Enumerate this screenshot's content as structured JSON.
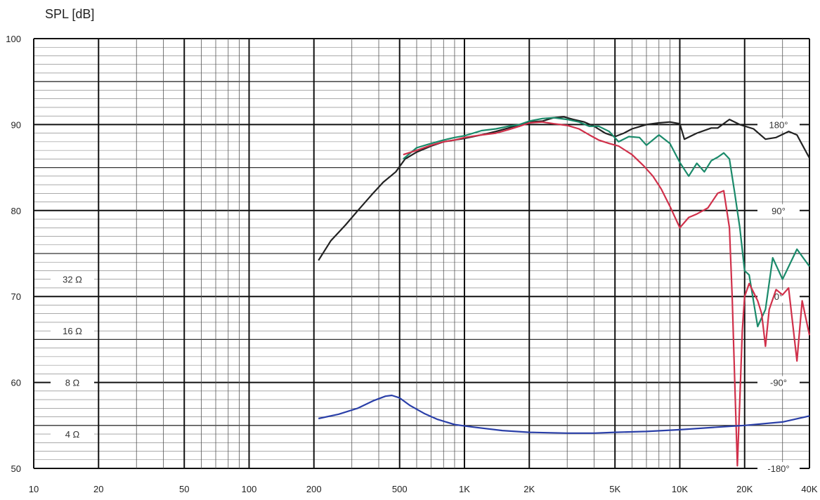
{
  "chart_data": {
    "type": "line",
    "y_unit_label": "SPL  [dB]",
    "x_scale": "log",
    "xlim": [
      10,
      40000
    ],
    "ylim": [
      50,
      100
    ],
    "grid": true,
    "x_tick_values": [
      10,
      20,
      50,
      100,
      200,
      500,
      1000,
      2000,
      5000,
      10000,
      20000,
      40000
    ],
    "x_tick_labels": [
      "10",
      "20",
      "50",
      "100",
      "200",
      "500",
      "1K",
      "2K",
      "5K",
      "10K",
      "20K",
      "40K"
    ],
    "y_tick_values": [
      50,
      60,
      70,
      80,
      90,
      100
    ],
    "y_tick_labels": [
      "50",
      "60",
      "70",
      "80",
      "90",
      "100"
    ],
    "impedance_axis": [
      {
        "label": "32  Ω",
        "y": 72
      },
      {
        "label": "16  Ω",
        "y": 66
      },
      {
        "label": "8  Ω",
        "y": 60
      },
      {
        "label": "4  Ω",
        "y": 54
      }
    ],
    "phase_axis": [
      {
        "label": "180°",
        "y": 90
      },
      {
        "label": "90°",
        "y": 80
      },
      {
        "label": "0°",
        "y": 70
      },
      {
        "label": "-90°",
        "y": 60
      },
      {
        "label": "-180°",
        "y": 50
      }
    ],
    "series": [
      {
        "color": "#222222",
        "x": [
          210,
          240,
          280,
          320,
          370,
          420,
          480,
          530,
          600,
          700,
          800,
          900,
          1000,
          1200,
          1400,
          1600,
          1800,
          2000,
          2300,
          2600,
          2900,
          3200,
          3600,
          4000,
          4500,
          5000,
          5500,
          6000,
          7000,
          8000,
          9000,
          10000,
          10500,
          12000,
          14000,
          15000,
          17000,
          19000,
          22000,
          25000,
          28000,
          32000,
          35000,
          40000
        ],
        "y": [
          74.2,
          76.5,
          78.3,
          80,
          81.8,
          83.3,
          84.5,
          86,
          86.8,
          87.5,
          88,
          88.2,
          88.4,
          88.8,
          89.2,
          89.6,
          90,
          90.3,
          90.4,
          90.8,
          90.9,
          90.6,
          90.3,
          89.8,
          89,
          88.6,
          89,
          89.5,
          90,
          90.2,
          90.3,
          90.1,
          88.3,
          89,
          89.6,
          89.6,
          90.6,
          90,
          89.5,
          88.3,
          88.5,
          89.2,
          88.8,
          86.1
        ]
      },
      {
        "color": "#1a8a6a",
        "x": [
          520,
          600,
          700,
          800,
          900,
          1000,
          1100,
          1200,
          1400,
          1600,
          1800,
          2000,
          2300,
          2600,
          3000,
          3400,
          3800,
          4200,
          4700,
          5200,
          5800,
          6500,
          7000,
          8000,
          9000,
          10000,
          11000,
          12000,
          13000,
          14000,
          15000,
          16000,
          17000,
          18000,
          19000,
          20000,
          21000,
          23000,
          25000,
          27000,
          30000,
          35000,
          40000
        ],
        "y": [
          86,
          87.3,
          87.8,
          88.2,
          88.5,
          88.7,
          89,
          89.3,
          89.5,
          89.8,
          90,
          90.4,
          90.7,
          90.8,
          90.6,
          90.3,
          89.8,
          89.8,
          89.2,
          88,
          88.6,
          88.5,
          87.6,
          88.8,
          87.8,
          85.6,
          84,
          85.5,
          84.5,
          85.8,
          86.2,
          86.7,
          86,
          82,
          78,
          73,
          72.5,
          66.5,
          68.5,
          74.5,
          72,
          75.5,
          73.5
        ]
      },
      {
        "color": "#d0304a",
        "x": [
          520,
          600,
          700,
          800,
          900,
          1000,
          1200,
          1400,
          1600,
          1800,
          2000,
          2300,
          2600,
          3000,
          3400,
          3800,
          4200,
          4700,
          5200,
          6000,
          6800,
          7500,
          8200,
          9000,
          10000,
          11000,
          12000,
          13500,
          15000,
          16000,
          17000,
          17500,
          18000,
          18500,
          19000,
          19500,
          20000,
          21000,
          22000,
          23000,
          24000,
          25000,
          26000,
          28000,
          30000,
          32000,
          35000,
          37000,
          40000
        ],
        "y": [
          86.5,
          87,
          87.6,
          88,
          88.2,
          88.5,
          88.8,
          89,
          89.4,
          89.8,
          90.2,
          90.3,
          90.1,
          89.9,
          89.5,
          88.8,
          88.2,
          87.8,
          87.5,
          86.5,
          85.2,
          84,
          82.5,
          80.5,
          78,
          79.2,
          79.6,
          80.3,
          82,
          82.3,
          78,
          70,
          60,
          50.3,
          58,
          66,
          70,
          71.5,
          70.5,
          69.5,
          68,
          64.2,
          68.5,
          70.8,
          70.2,
          71,
          62.5,
          69.5,
          65.5
        ]
      },
      {
        "color": "#2a3fa8",
        "x": [
          210,
          260,
          320,
          380,
          430,
          460,
          500,
          560,
          650,
          750,
          900,
          1100,
          1500,
          2000,
          3000,
          4000,
          5000,
          7000,
          10000,
          15000,
          20000,
          30000,
          40000
        ],
        "y": [
          55.8,
          56.3,
          57,
          57.9,
          58.4,
          58.5,
          58.2,
          57.3,
          56.4,
          55.7,
          55.1,
          54.8,
          54.4,
          54.2,
          54.1,
          54.1,
          54.2,
          54.3,
          54.5,
          54.8,
          55.0,
          55.4,
          56.1
        ]
      }
    ]
  }
}
